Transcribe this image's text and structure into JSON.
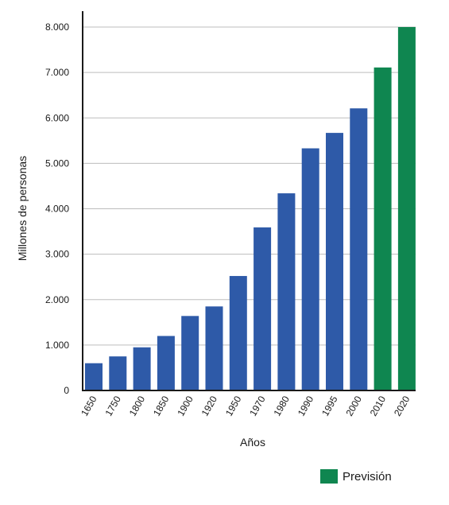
{
  "chart_data": {
    "type": "bar",
    "categories": [
      "1650",
      "1750",
      "1800",
      "1850",
      "1900",
      "1920",
      "1950",
      "1970",
      "1980",
      "1990",
      "1995",
      "2000",
      "2010",
      "2020"
    ],
    "values": [
      600,
      750,
      950,
      1200,
      1640,
      1850,
      2520,
      3590,
      4340,
      5330,
      5670,
      6210,
      7110,
      8000
    ],
    "forecast": [
      false,
      false,
      false,
      false,
      false,
      false,
      false,
      false,
      false,
      false,
      false,
      false,
      true,
      true
    ],
    "ylabel": "Millones de personas",
    "xlabel": "Años",
    "ylim": [
      0,
      8000
    ],
    "yticks": [
      0,
      1000,
      2000,
      3000,
      4000,
      5000,
      6000,
      7000,
      8000
    ],
    "ytick_labels": [
      "0",
      "1.000",
      "2.000",
      "3.000",
      "4.000",
      "5.000",
      "6.000",
      "7.000",
      "8.000"
    ],
    "grid": true,
    "legend": {
      "label": "Previsión",
      "placement": "bottom-right"
    },
    "colors": {
      "actual": "#2e5aa8",
      "forecast": "#0f8650",
      "grid": "#bdbdbd",
      "axis": "#1a1a1a"
    }
  }
}
